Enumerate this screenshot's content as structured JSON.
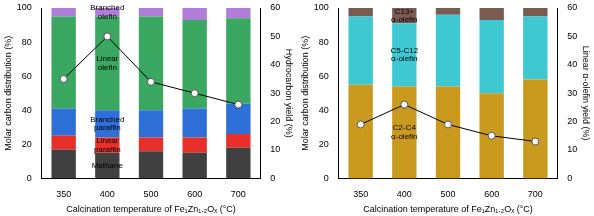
{
  "chart_data": [
    {
      "type": "bar",
      "stacked": true,
      "grid": false,
      "xlabel": "Calcination temperature of Fe₁Zn₁.₂Oₓ (°C)",
      "ylabel": "Molar carbon distribution (%)",
      "y2label": "Hydrocarbon yield (%)",
      "categories": [
        "350",
        "400",
        "500",
        "600",
        "700"
      ],
      "ylim": [
        0,
        100
      ],
      "yticks": [
        0,
        20,
        40,
        60,
        80,
        100
      ],
      "y2lim": [
        0,
        60
      ],
      "y2ticks": [
        0,
        10,
        20,
        30,
        40,
        50,
        60
      ],
      "series": [
        {
          "name": "Methane",
          "color": "#404040",
          "values": [
            17,
            15,
            16,
            15,
            18
          ]
        },
        {
          "name": "Linear paraffin",
          "color": "#e8302a",
          "values": [
            8,
            9,
            8,
            9,
            8
          ]
        },
        {
          "name": "Branched paraffin",
          "color": "#2e6fd8",
          "values": [
            16,
            16,
            16,
            17,
            18
          ]
        },
        {
          "name": "Linear olefin",
          "color": "#3aa860",
          "values": [
            54,
            55,
            55,
            52,
            50
          ]
        },
        {
          "name": "Branched olefin",
          "color": "#b07ed8",
          "values": [
            5,
            5,
            5,
            7,
            6
          ]
        },
        {
          "type": "line",
          "axis": "y2",
          "color": "#000000",
          "marker": "circle",
          "values": [
            35,
            50,
            34,
            30,
            26
          ]
        }
      ]
    },
    {
      "type": "bar",
      "stacked": true,
      "grid": false,
      "xlabel": "Calcination temperature of Fe₁Zn₁.₂Oₓ (°C)",
      "ylabel": "Molar carbon distribution (%)",
      "y2label": "Linear α-olefin yield (%)",
      "categories": [
        "350",
        "400",
        "500",
        "600",
        "700"
      ],
      "ylim": [
        0,
        100
      ],
      "yticks": [
        0,
        20,
        40,
        60,
        80,
        100
      ],
      "y2lim": [
        0,
        60
      ],
      "y2ticks": [
        0,
        10,
        20,
        30,
        40,
        50,
        60
      ],
      "series": [
        {
          "name": "C2-C4 α-olefin",
          "color": "#c99a1e",
          "values": [
            55,
            54,
            54,
            50,
            58
          ]
        },
        {
          "name": "C5-C12 α-olefin",
          "color": "#3ec8d2",
          "values": [
            40,
            37,
            42,
            43,
            37
          ]
        },
        {
          "name": "C13+ α-olefin",
          "color": "#7b5a52",
          "values": [
            5,
            9,
            4,
            7,
            5
          ]
        },
        {
          "type": "line",
          "axis": "y2",
          "color": "#000000",
          "marker": "circle",
          "values": [
            19,
            26,
            19,
            15,
            13
          ]
        }
      ]
    }
  ]
}
